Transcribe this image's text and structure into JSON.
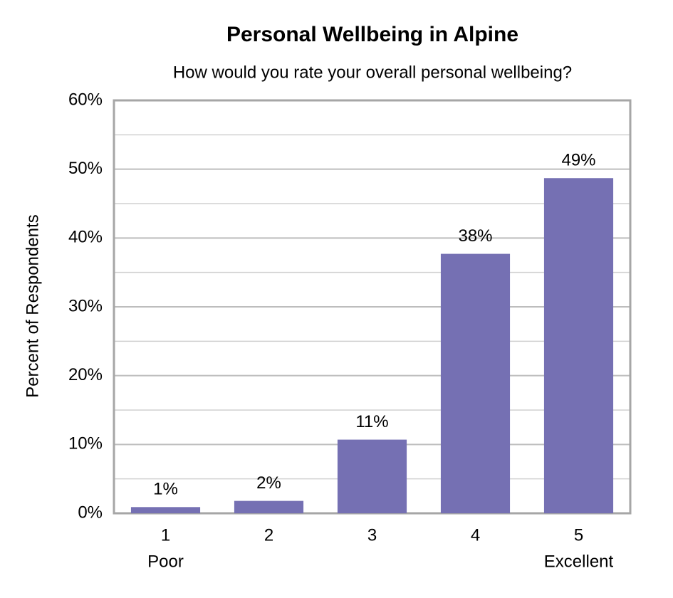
{
  "chart_data": {
    "type": "bar",
    "title": "Personal Wellbeing in Alpine",
    "subtitle": "How would you rate your overall personal wellbeing?",
    "y_label": "Percent of Respondents",
    "categories": [
      "1",
      "2",
      "3",
      "4",
      "5"
    ],
    "category_sublabels": [
      "Poor",
      null,
      null,
      null,
      "Excellent"
    ],
    "values": [
      0.9,
      1.8,
      10.7,
      37.7,
      48.7
    ],
    "value_labels": [
      "1%",
      "2%",
      "11%",
      "38%",
      "49%"
    ],
    "color": "#7570b3",
    "ylim": [
      0,
      60
    ],
    "yticks": [
      {
        "value": 0,
        "label": "0%"
      },
      {
        "value": 10,
        "label": "10%"
      },
      {
        "value": 20,
        "label": "20%"
      },
      {
        "value": 30,
        "label": "30%"
      },
      {
        "value": 40,
        "label": "40%"
      },
      {
        "value": 50,
        "label": "50%"
      },
      {
        "value": 60,
        "label": "60%"
      }
    ],
    "minor_yticks": [
      5,
      15,
      25,
      35,
      45,
      55
    ],
    "grid": true
  }
}
